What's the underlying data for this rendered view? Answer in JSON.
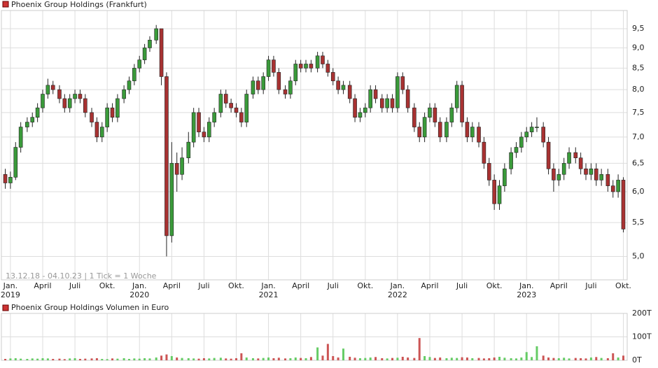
{
  "chart_data": [
    {
      "type": "candlestick",
      "title": "Phoenix Group Holdings (Frankfurt)",
      "note": "13.12.18 - 04.10.23  |  1 Tick = 1 Woche",
      "log_scale": true,
      "grid": true,
      "up_color": "#3a9a3a",
      "down_color": "#a83232",
      "title_color": "#c33",
      "x": [
        2018.96,
        2019.0,
        2019.04,
        2019.08,
        2019.13,
        2019.17,
        2019.21,
        2019.25,
        2019.29,
        2019.33,
        2019.38,
        2019.42,
        2019.46,
        2019.5,
        2019.54,
        2019.58,
        2019.63,
        2019.67,
        2019.71,
        2019.75,
        2019.79,
        2019.83,
        2019.88,
        2019.92,
        2019.96,
        2020.0,
        2020.04,
        2020.08,
        2020.13,
        2020.17,
        2020.21,
        2020.25,
        2020.29,
        2020.33,
        2020.38,
        2020.42,
        2020.46,
        2020.5,
        2020.54,
        2020.58,
        2020.63,
        2020.67,
        2020.71,
        2020.75,
        2020.79,
        2020.83,
        2020.88,
        2020.92,
        2020.96,
        2021.0,
        2021.04,
        2021.08,
        2021.13,
        2021.17,
        2021.21,
        2021.25,
        2021.29,
        2021.33,
        2021.38,
        2021.42,
        2021.46,
        2021.5,
        2021.54,
        2021.58,
        2021.63,
        2021.67,
        2021.71,
        2021.75,
        2021.79,
        2021.83,
        2021.88,
        2021.92,
        2021.96,
        2022.0,
        2022.04,
        2022.08,
        2022.13,
        2022.17,
        2022.21,
        2022.25,
        2022.29,
        2022.33,
        2022.38,
        2022.42,
        2022.46,
        2022.5,
        2022.54,
        2022.58,
        2022.63,
        2022.67,
        2022.71,
        2022.75,
        2022.79,
        2022.83,
        2022.88,
        2022.92,
        2022.96,
        2023.0,
        2023.04,
        2023.08,
        2023.13,
        2023.17,
        2023.21,
        2023.25,
        2023.29,
        2023.33,
        2023.38,
        2023.42,
        2023.46,
        2023.5,
        2023.54,
        2023.58,
        2023.63,
        2023.67,
        2023.71,
        2023.75
      ],
      "open": [
        6.3,
        6.15,
        6.25,
        6.8,
        7.2,
        7.3,
        7.4,
        7.6,
        7.9,
        8.1,
        8.0,
        7.8,
        7.6,
        7.8,
        7.9,
        7.8,
        7.5,
        7.3,
        7.0,
        7.2,
        7.6,
        7.4,
        7.8,
        8.0,
        8.2,
        8.5,
        8.7,
        9.0,
        9.2,
        9.5,
        8.3,
        5.3,
        6.5,
        6.3,
        6.6,
        6.9,
        7.5,
        7.1,
        7.0,
        7.3,
        7.5,
        7.9,
        7.7,
        7.6,
        7.5,
        7.3,
        7.9,
        8.2,
        8.0,
        8.3,
        8.7,
        8.4,
        8.0,
        7.9,
        8.2,
        8.6,
        8.5,
        8.6,
        8.5,
        8.8,
        8.6,
        8.4,
        8.2,
        8.0,
        8.1,
        7.8,
        7.4,
        7.5,
        7.6,
        8.0,
        7.8,
        7.6,
        7.8,
        7.6,
        8.3,
        8.0,
        7.6,
        7.2,
        7.0,
        7.4,
        7.6,
        7.3,
        7.0,
        7.3,
        7.6,
        8.1,
        7.3,
        7.0,
        7.2,
        6.9,
        6.5,
        6.2,
        5.8,
        6.1,
        6.4,
        6.7,
        6.8,
        7.0,
        7.1,
        7.2,
        7.2,
        6.9,
        6.4,
        6.2,
        6.3,
        6.5,
        6.7,
        6.6,
        6.4,
        6.3,
        6.4,
        6.2,
        6.3,
        6.1,
        6.0,
        6.2
      ],
      "high": [
        6.4,
        6.35,
        6.9,
        7.3,
        7.4,
        7.5,
        7.7,
        8.0,
        8.25,
        8.2,
        8.1,
        7.9,
        7.9,
        8.0,
        8.0,
        7.9,
        7.6,
        7.4,
        7.3,
        7.7,
        7.7,
        7.9,
        8.1,
        8.3,
        8.6,
        8.8,
        9.1,
        9.3,
        9.6,
        9.5,
        8.4,
        6.9,
        6.7,
        6.8,
        7.1,
        7.6,
        7.6,
        7.2,
        7.4,
        7.6,
        8.0,
        8.0,
        7.8,
        7.7,
        7.6,
        8.0,
        8.3,
        8.3,
        8.4,
        8.8,
        8.8,
        8.5,
        8.1,
        8.3,
        8.7,
        8.7,
        8.7,
        8.7,
        8.9,
        8.9,
        8.7,
        8.5,
        8.3,
        8.2,
        8.2,
        7.9,
        7.6,
        7.7,
        8.1,
        8.1,
        7.9,
        7.9,
        7.9,
        8.4,
        8.4,
        8.1,
        7.7,
        7.3,
        7.5,
        7.7,
        7.7,
        7.4,
        7.4,
        7.7,
        8.2,
        8.2,
        7.4,
        7.3,
        7.3,
        7.0,
        6.6,
        6.3,
        6.2,
        6.5,
        6.8,
        6.9,
        7.1,
        7.2,
        7.3,
        7.4,
        7.3,
        7.0,
        6.5,
        6.4,
        6.6,
        6.8,
        6.8,
        6.7,
        6.5,
        6.5,
        6.5,
        6.4,
        6.4,
        6.2,
        6.3,
        6.25
      ],
      "low": [
        6.05,
        6.05,
        6.2,
        6.7,
        7.1,
        7.2,
        7.3,
        7.5,
        7.8,
        7.9,
        7.7,
        7.5,
        7.5,
        7.7,
        7.7,
        7.4,
        7.2,
        6.9,
        6.9,
        7.1,
        7.3,
        7.3,
        7.7,
        7.9,
        8.1,
        8.4,
        8.6,
        8.9,
        9.1,
        8.1,
        5.0,
        5.2,
        6.0,
        6.2,
        6.5,
        6.8,
        7.0,
        6.9,
        6.9,
        7.2,
        7.4,
        7.6,
        7.5,
        7.4,
        7.2,
        7.2,
        7.8,
        7.9,
        7.9,
        8.2,
        8.3,
        7.9,
        7.8,
        7.8,
        8.1,
        8.4,
        8.4,
        8.4,
        8.4,
        8.5,
        8.3,
        8.1,
        7.9,
        7.9,
        7.7,
        7.3,
        7.3,
        7.4,
        7.5,
        7.7,
        7.5,
        7.5,
        7.5,
        7.5,
        7.9,
        7.5,
        7.1,
        6.9,
        6.9,
        7.3,
        7.2,
        6.9,
        6.9,
        7.2,
        7.5,
        7.2,
        6.9,
        6.9,
        6.8,
        6.4,
        6.1,
        5.7,
        5.7,
        6.0,
        6.3,
        6.6,
        6.7,
        6.9,
        7.0,
        7.1,
        6.8,
        6.3,
        6.0,
        6.1,
        6.2,
        6.4,
        6.5,
        6.3,
        6.2,
        6.2,
        6.1,
        6.1,
        6.0,
        5.9,
        5.9,
        5.35
      ],
      "close": [
        6.15,
        6.25,
        6.8,
        7.2,
        7.3,
        7.4,
        7.6,
        7.9,
        8.1,
        8.0,
        7.8,
        7.6,
        7.8,
        7.9,
        7.8,
        7.5,
        7.3,
        7.0,
        7.2,
        7.6,
        7.4,
        7.8,
        8.0,
        8.2,
        8.5,
        8.7,
        9.0,
        9.2,
        9.5,
        8.3,
        5.3,
        6.5,
        6.3,
        6.6,
        6.9,
        7.5,
        7.1,
        7.0,
        7.3,
        7.5,
        7.9,
        7.7,
        7.6,
        7.5,
        7.3,
        7.9,
        8.2,
        8.0,
        8.3,
        8.7,
        8.4,
        8.0,
        7.9,
        8.2,
        8.6,
        8.5,
        8.6,
        8.5,
        8.8,
        8.6,
        8.4,
        8.2,
        8.0,
        8.1,
        7.8,
        7.4,
        7.5,
        7.6,
        8.0,
        7.8,
        7.6,
        7.8,
        7.6,
        8.3,
        8.0,
        7.6,
        7.2,
        7.0,
        7.4,
        7.6,
        7.3,
        7.0,
        7.3,
        7.6,
        8.1,
        7.3,
        7.0,
        7.2,
        6.9,
        6.5,
        6.2,
        5.8,
        6.1,
        6.4,
        6.7,
        6.8,
        7.0,
        7.1,
        7.2,
        7.2,
        6.9,
        6.4,
        6.2,
        6.3,
        6.5,
        6.7,
        6.6,
        6.4,
        6.3,
        6.4,
        6.2,
        6.3,
        6.1,
        6.0,
        6.2,
        5.4
      ],
      "xlim": [
        2018.93,
        2023.78
      ],
      "ylim": [
        4.68,
        10.0
      ],
      "yticks": [
        {
          "value": 5.0,
          "label": "5,0"
        },
        {
          "value": 5.5,
          "label": "5,5"
        },
        {
          "value": 6.0,
          "label": "6,0"
        },
        {
          "value": 6.5,
          "label": "6,5"
        },
        {
          "value": 7.0,
          "label": "7,0"
        },
        {
          "value": 7.5,
          "label": "7,5"
        },
        {
          "value": 8.0,
          "label": "8,0"
        },
        {
          "value": 8.5,
          "label": "8,5"
        },
        {
          "value": 9.0,
          "label": "9,0"
        },
        {
          "value": 9.5,
          "label": "9,5"
        }
      ],
      "xticks": [
        {
          "value": 2019.0,
          "label": "Jan."
        },
        {
          "value": 2019.25,
          "label": "April"
        },
        {
          "value": 2019.5,
          "label": "Juli"
        },
        {
          "value": 2019.75,
          "label": "Okt."
        },
        {
          "value": 2020.0,
          "label": "Jan."
        },
        {
          "value": 2020.25,
          "label": "April"
        },
        {
          "value": 2020.5,
          "label": "Juli"
        },
        {
          "value": 2020.75,
          "label": "Okt."
        },
        {
          "value": 2021.0,
          "label": "Jan."
        },
        {
          "value": 2021.25,
          "label": "April"
        },
        {
          "value": 2021.5,
          "label": "Juli"
        },
        {
          "value": 2021.75,
          "label": "Okt."
        },
        {
          "value": 2022.0,
          "label": "Jan."
        },
        {
          "value": 2022.25,
          "label": "April"
        },
        {
          "value": 2022.5,
          "label": "Juli"
        },
        {
          "value": 2022.75,
          "label": "Okt."
        },
        {
          "value": 2023.0,
          "label": "Jan."
        },
        {
          "value": 2023.25,
          "label": "April"
        },
        {
          "value": 2023.5,
          "label": "Juli"
        },
        {
          "value": 2023.75,
          "label": "Okt."
        }
      ],
      "years": [
        2019,
        2020,
        2021,
        2022,
        2023
      ]
    },
    {
      "type": "volume",
      "title": "Phoenix Group Holdings Volumen in Euro",
      "grid": true,
      "up_color": "#66cc66",
      "down_color": "#cc5555",
      "title_color": "#c33",
      "values": [
        6,
        8,
        9,
        7,
        6,
        8,
        7,
        9,
        8,
        6,
        7,
        5,
        8,
        9,
        6,
        7,
        8,
        9,
        6,
        5,
        8,
        7,
        9,
        6,
        8,
        7,
        9,
        8,
        12,
        20,
        25,
        18,
        12,
        10,
        9,
        8,
        7,
        9,
        8,
        10,
        11,
        8,
        7,
        9,
        30,
        12,
        9,
        8,
        10,
        12,
        9,
        11,
        8,
        9,
        12,
        10,
        9,
        14,
        55,
        20,
        70,
        18,
        12,
        50,
        15,
        11,
        9,
        10,
        12,
        14,
        9,
        8,
        10,
        11,
        15,
        12,
        10,
        95,
        18,
        14,
        10,
        12,
        9,
        11,
        10,
        13,
        12,
        9,
        10,
        8,
        9,
        12,
        15,
        11,
        9,
        8,
        12,
        35,
        14,
        60,
        20,
        12,
        10,
        9,
        11,
        8,
        10,
        9,
        8,
        12,
        14,
        10,
        9,
        30,
        12,
        20
      ],
      "xlim": [
        2018.93,
        2023.78
      ],
      "ylim": [
        0,
        200
      ],
      "yticks": [
        {
          "value": 0,
          "label": "0T"
        },
        {
          "value": 100,
          "label": "100T"
        },
        {
          "value": 200,
          "label": "200T"
        }
      ]
    }
  ]
}
